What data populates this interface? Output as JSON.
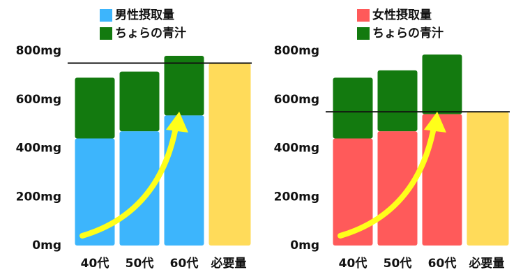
{
  "chart_data": [
    {
      "type": "stacked_bar",
      "categories": [
        "40代",
        "50代",
        "60代",
        "必要量"
      ],
      "series": [
        {
          "name": "男性摂取量",
          "color": "#3db5fc",
          "values": [
            440,
            470,
            535,
            null
          ]
        },
        {
          "name": "ちょらの青汁",
          "color": "#137a0f",
          "values": [
            250,
            245,
            245,
            null
          ]
        }
      ],
      "requirement": {
        "value": 750,
        "color": "#ffdb5a"
      },
      "ylim": [
        0,
        800
      ],
      "yticks": [
        {
          "value": 0,
          "label": "0mg"
        },
        {
          "value": 200,
          "label": "200mg"
        },
        {
          "value": 400,
          "label": "400mg"
        },
        {
          "value": 600,
          "label": "600mg"
        },
        {
          "value": 800,
          "label": "800mg"
        }
      ],
      "grid": false
    },
    {
      "type": "stacked_bar",
      "categories": [
        "40代",
        "50代",
        "60代",
        "必要量"
      ],
      "series": [
        {
          "name": "女性摂取量",
          "color": "#ff5a5a",
          "values": [
            440,
            470,
            540,
            null
          ]
        },
        {
          "name": "ちょらの青汁",
          "color": "#137a0f",
          "values": [
            250,
            250,
            245,
            null
          ]
        }
      ],
      "requirement": {
        "value": 550,
        "color": "#ffdb5a"
      },
      "ylim": [
        0,
        800
      ],
      "yticks": [
        {
          "value": 0,
          "label": "0mg"
        },
        {
          "value": 200,
          "label": "200mg"
        },
        {
          "value": 400,
          "label": "400mg"
        },
        {
          "value": 600,
          "label": "600mg"
        },
        {
          "value": 800,
          "label": "800mg"
        }
      ],
      "grid": false
    }
  ]
}
